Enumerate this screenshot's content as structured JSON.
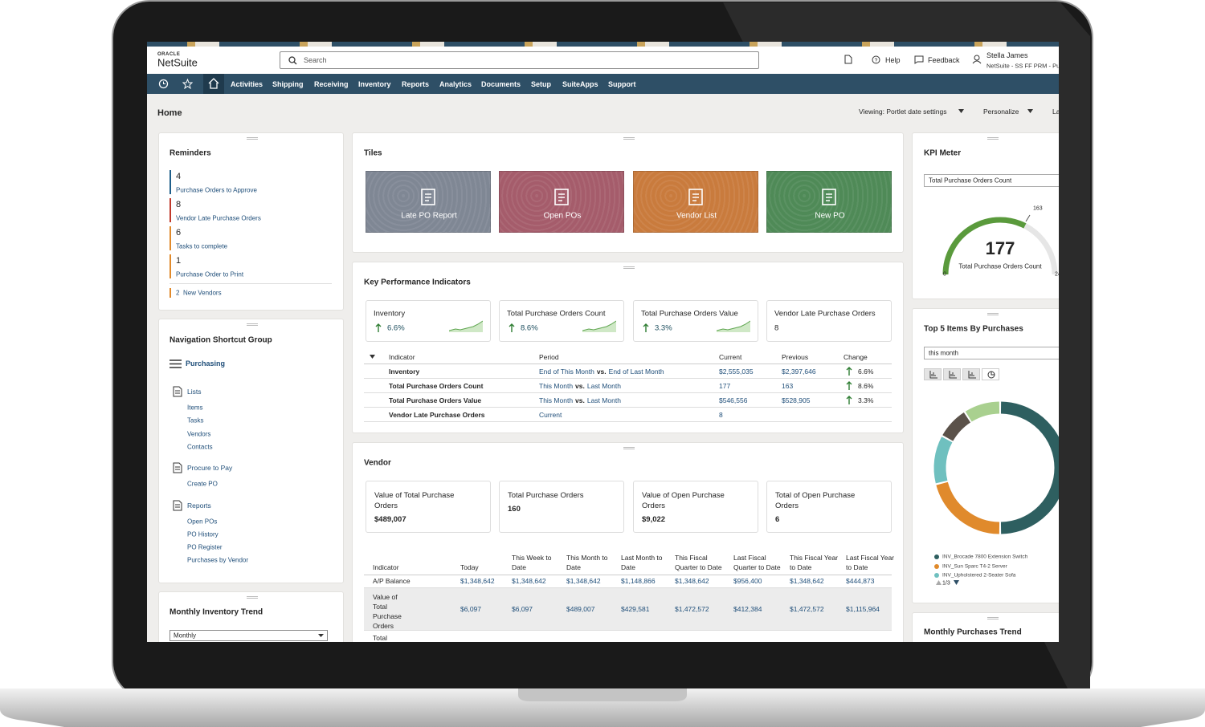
{
  "header": {
    "logo_brand": "ORACLE",
    "logo_product": "NetSuite",
    "search_placeholder": "Search",
    "help": "Help",
    "feedback": "Feedback",
    "user_name": "Stella James",
    "user_role": "NetSuite - SS FF PRM - Pu"
  },
  "nav": {
    "items": [
      "Activities",
      "Shipping",
      "Receiving",
      "Inventory",
      "Reports",
      "Analytics",
      "Documents",
      "Setup",
      "SuiteApps",
      "Support"
    ]
  },
  "page": {
    "title": "Home",
    "viewing": "Viewing: Portlet date settings",
    "personalize": "Personalize",
    "layout": "La"
  },
  "reminders": {
    "title": "Reminders",
    "items": [
      {
        "count": 4,
        "label": "Purchase Orders to Approve",
        "color": "#1f5f8b"
      },
      {
        "count": 8,
        "label": "Vendor Late Purchase Orders",
        "color": "#c0392b"
      },
      {
        "count": 6,
        "label": "Tasks to complete",
        "color": "#e08a2c"
      },
      {
        "count": 1,
        "label": "Purchase Order to Print",
        "color": "#e08a2c"
      }
    ],
    "new_vendors": {
      "count": 2,
      "label": "New Vendors",
      "color": "#e08a2c"
    }
  },
  "shortcuts": {
    "title": "Navigation Shortcut Group",
    "group": "Purchasing",
    "sections": [
      {
        "title": "Lists",
        "links": [
          "Items",
          "Tasks",
          "Vendors",
          "Contacts"
        ]
      },
      {
        "title": "Procure to Pay",
        "links": [
          "Create PO"
        ]
      },
      {
        "title": "Reports",
        "links": [
          "Open POs",
          "PO History",
          "PO Register",
          "Purchases by Vendor"
        ]
      }
    ]
  },
  "monthly_inventory": {
    "title": "Monthly Inventory Trend",
    "select": "Monthly"
  },
  "tiles": {
    "title": "Tiles",
    "items": [
      {
        "label": "Late PO Report",
        "color": "#7f8794"
      },
      {
        "label": "Open POs",
        "color": "#a55c6b"
      },
      {
        "label": "Vendor List",
        "color": "#c97b3d"
      },
      {
        "label": "New PO",
        "color": "#4f8a57"
      }
    ]
  },
  "kpi": {
    "title": "Key Performance Indicators",
    "cards": [
      {
        "name": "Inventory",
        "change": "6.6%"
      },
      {
        "name": "Total Purchase Orders Count",
        "change": "8.6%"
      },
      {
        "name": "Total Purchase Orders Value",
        "change": "3.3%"
      },
      {
        "name": "Vendor Late Purchase Orders",
        "value": 8
      }
    ],
    "table": {
      "headers": [
        "Indicator",
        "Period",
        "Current",
        "Previous",
        "Change"
      ],
      "rows": [
        {
          "indicator": "Inventory",
          "period": [
            "End of This Month",
            "vs.",
            "End of Last Month"
          ],
          "current": "$2,555,035",
          "previous": "$2,397,646",
          "change": "6.6%"
        },
        {
          "indicator": "Total Purchase Orders Count",
          "period": [
            "This Month",
            "vs.",
            "Last Month"
          ],
          "current": 177,
          "previous": 163,
          "change": "8.6%"
        },
        {
          "indicator": "Total Purchase Orders Value",
          "period": [
            "This Month",
            "vs.",
            "Last Month"
          ],
          "current": "$546,556",
          "previous": "$528,905",
          "change": "3.3%"
        },
        {
          "indicator": "Vendor Late Purchase Orders",
          "period": [
            "Current"
          ],
          "current": 8
        }
      ]
    }
  },
  "vendor": {
    "title": "Vendor",
    "cards": [
      {
        "name": "Value of Total Purchase Orders",
        "value": "$489,007"
      },
      {
        "name": "Total Purchase Orders",
        "value": 160
      },
      {
        "name": "Value of Open Purchase Orders",
        "value": "$9,022"
      },
      {
        "name": "Total of Open Purchase Orders",
        "value": 6
      }
    ],
    "table": {
      "headers": [
        "Indicator",
        "Today",
        "This Week to Date",
        "This Month to Date",
        "Last Month to Date",
        "This Fiscal Quarter to Date",
        "Last Fiscal Quarter to Date",
        "This Fiscal Year to Date",
        "Last Fiscal Year to Date"
      ],
      "rows": [
        [
          "A/P Balance",
          "$1,348,642",
          "$1,348,642",
          "$1,348,642",
          "$1,148,866",
          "$1,348,642",
          "$956,400",
          "$1,348,642",
          "$444,873"
        ],
        [
          "Value of Total Purchase Orders",
          "$6,097",
          "$6,097",
          "$489,007",
          "$429,581",
          "$1,472,572",
          "$412,384",
          "$1,472,572",
          "$1,115,964"
        ],
        [
          "Total"
        ]
      ]
    }
  },
  "kpi_meter": {
    "title": "KPI Meter",
    "select": "Total Purchase Orders Count",
    "value": 177,
    "label": "Total Purchase Orders Count",
    "target": 163,
    "min": 0,
    "max_label": "24"
  },
  "top5": {
    "title": "Top 5 Items By Purchases",
    "select": "this month",
    "segments": [
      {
        "value": 50,
        "color": "#2e5f60"
      },
      {
        "value": 21,
        "color": "#e08a2c"
      },
      {
        "value": 12,
        "color": "#6fc0bf"
      },
      {
        "value": 8,
        "color": "#5b524a"
      },
      {
        "value": 9,
        "color": "#a9d08f"
      }
    ],
    "legend": [
      {
        "name": "INV_Brocade 7800 Extension Switch",
        "color": "#2e5f60"
      },
      {
        "name": "INV_Sun Sparc T4-2 Server",
        "color": "#e08a2c"
      },
      {
        "name": "INV_Upholstered 2-Seater Sofa",
        "color": "#6fc0bf"
      }
    ],
    "pager": "1/3"
  },
  "monthly_purchases": {
    "title": "Monthly Purchases Trend"
  }
}
